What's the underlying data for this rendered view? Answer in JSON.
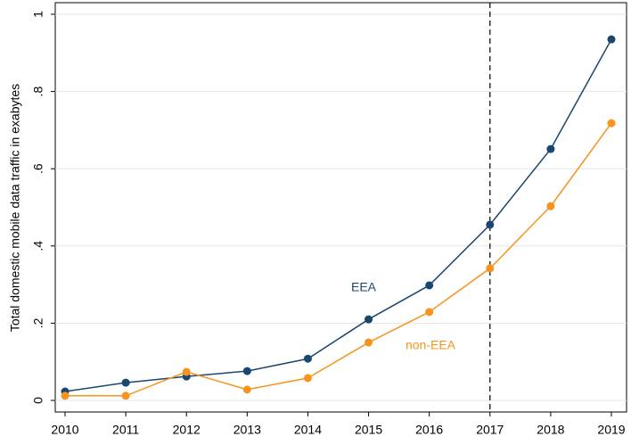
{
  "chart_data": {
    "type": "line",
    "ylabel": "Total domestic mobile data traffic in exabytes",
    "x": [
      2010,
      2011,
      2012,
      2013,
      2014,
      2015,
      2016,
      2017,
      2018,
      2019
    ],
    "series": [
      {
        "name": "EEA",
        "color": "#1a476f",
        "values": [
          0.023,
          0.046,
          0.062,
          0.076,
          0.108,
          0.21,
          0.298,
          0.455,
          0.651,
          0.935
        ]
      },
      {
        "name": "non-EEA",
        "color": "#f7941d",
        "values": [
          0.012,
          0.012,
          0.074,
          0.028,
          0.058,
          0.15,
          0.229,
          0.342,
          0.503,
          0.718
        ]
      }
    ],
    "xlim": [
      2010,
      2019
    ],
    "xticks": [
      2010,
      2011,
      2012,
      2013,
      2014,
      2015,
      2016,
      2017,
      2018,
      2019
    ],
    "ylim": [
      0,
      1
    ],
    "yticks": [
      0,
      {
        "value": 0.2,
        "label": ".2"
      },
      {
        "value": 0.4,
        "label": ".4"
      },
      {
        "value": 0.6,
        "label": ".6"
      },
      {
        "value": 0.8,
        "label": ".8"
      },
      1
    ],
    "grid": true,
    "vline": 2017
  }
}
